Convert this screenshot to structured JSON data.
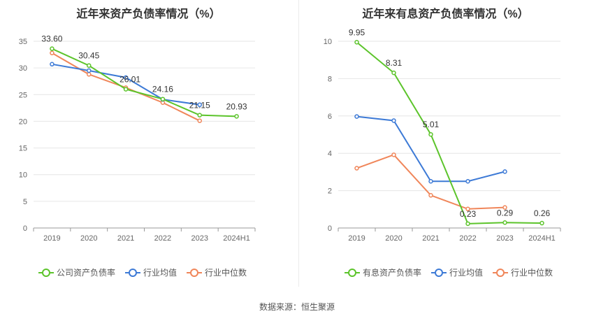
{
  "source_label": "数据来源：恒生聚源",
  "chart_data": [
    {
      "type": "line",
      "title": "近年来资产负债率情况（%）",
      "categories": [
        "2019",
        "2020",
        "2021",
        "2022",
        "2023",
        "2024H1"
      ],
      "ylim": [
        0,
        35
      ],
      "yticks": [
        "0",
        "5",
        "10",
        "15",
        "20",
        "25",
        "30",
        "35"
      ],
      "grid": true,
      "legend_position": "bottom",
      "series": [
        {
          "name": "公司资产负债率",
          "color": "#5cc42b",
          "values": [
            33.6,
            30.45,
            26.01,
            24.16,
            21.15,
            20.93
          ],
          "labels": [
            "33.60",
            "30.45",
            "26.01",
            "24.16",
            "21.15",
            "20.93"
          ]
        },
        {
          "name": "行业均值",
          "color": "#3d7ad6",
          "values": [
            30.7,
            29.5,
            28.2,
            24.1,
            23.1,
            null
          ],
          "labels": []
        },
        {
          "name": "行业中位数",
          "color": "#f0865a",
          "values": [
            32.8,
            28.8,
            26.3,
            23.5,
            20.1,
            null
          ],
          "labels": []
        }
      ]
    },
    {
      "type": "line",
      "title": "近年来有息资产负债率情况（%）",
      "categories": [
        "2019",
        "2020",
        "2021",
        "2022",
        "2023",
        "2024H1"
      ],
      "ylim": [
        0,
        10
      ],
      "yticks": [
        "0",
        "2",
        "4",
        "6",
        "8",
        "10"
      ],
      "grid": true,
      "legend_position": "bottom",
      "series": [
        {
          "name": "有息资产负债率",
          "color": "#5cc42b",
          "values": [
            9.95,
            8.31,
            5.01,
            0.23,
            0.29,
            0.26
          ],
          "labels": [
            "9.95",
            "8.31",
            "5.01",
            "0.23",
            "0.29",
            "0.26"
          ]
        },
        {
          "name": "行业均值",
          "color": "#3d7ad6",
          "values": [
            5.97,
            5.75,
            2.5,
            2.5,
            3.02,
            null
          ],
          "labels": []
        },
        {
          "name": "行业中位数",
          "color": "#f0865a",
          "values": [
            3.2,
            3.92,
            1.75,
            1.02,
            1.1,
            null
          ],
          "labels": []
        }
      ]
    }
  ]
}
